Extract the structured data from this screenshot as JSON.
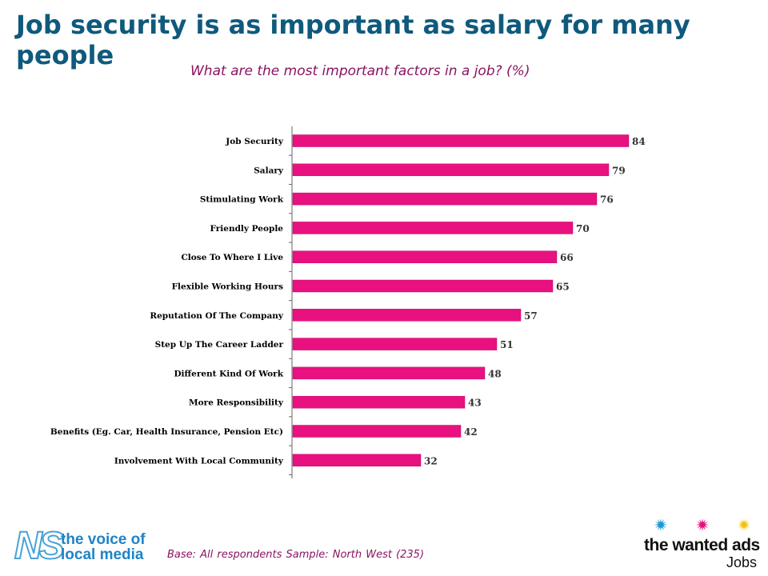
{
  "header": {
    "title": "Job security is as important as salary for many people",
    "subtitle": "What are the most important factors in a job? (%)"
  },
  "chart_data": {
    "type": "bar",
    "orientation": "horizontal",
    "categories": [
      "Job Security",
      "Salary",
      "Stimulating Work",
      "Friendly People",
      "Close To Where I Live",
      "Flexible Working Hours",
      "Reputation Of The Company",
      "Step Up The Career Ladder",
      "Different Kind Of Work",
      "More Responsibility",
      "Benefits (Eg. Car, Health Insurance, Pension Etc)",
      "Involvement With Local Community"
    ],
    "values": [
      84,
      79,
      76,
      70,
      66,
      65,
      57,
      51,
      48,
      43,
      42,
      32
    ],
    "xlim": [
      0,
      100
    ],
    "grid": false,
    "bar_color": "#e8117f"
  },
  "footer": {
    "note": "Base: All respondents  Sample: North West (235)",
    "left_logo": {
      "mark": "NS",
      "line1": "the voice of",
      "line2": "local media"
    },
    "right_logo": {
      "brand": "the wanted ads",
      "sub": "Jobs",
      "star_colors": [
        "#1a9ad6",
        "#e8117f",
        "#f2c21b"
      ]
    }
  }
}
